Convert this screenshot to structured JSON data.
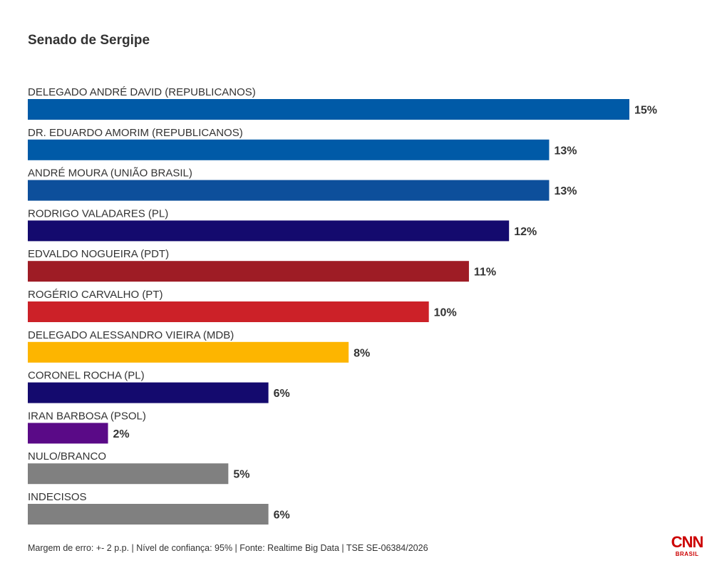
{
  "chart_data": {
    "type": "bar",
    "orientation": "horizontal",
    "title": "Senado de Sergipe",
    "categories": [
      "DELEGADO ANDRÉ DAVID (REPUBLICANOS)",
      "DR. EDUARDO AMORIM (REPUBLICANOS)",
      "ANDRÉ MOURA (UNIÃO BRASIL)",
      "RODRIGO VALADARES (PL)",
      "EDVALDO NOGUEIRA (PDT)",
      "ROGÉRIO CARVALHO (PT)",
      "DELEGADO ALESSANDRO VIEIRA (MDB)",
      "CORONEL ROCHA (PL)",
      "IRAN BARBOSA (PSOL)",
      "NULO/BRANCO",
      "INDECISOS"
    ],
    "values": [
      15,
      13,
      13,
      12,
      11,
      10,
      8,
      6,
      2,
      5,
      6
    ],
    "value_labels": [
      "15%",
      "13%",
      "13%",
      "12%",
      "11%",
      "10%",
      "8%",
      "6%",
      "2%",
      "5%",
      "6%"
    ],
    "colors": [
      "#005aa7",
      "#005aa7",
      "#0d4f9b",
      "#140a6e",
      "#9e1c25",
      "#cc2128",
      "#fdb500",
      "#140a6e",
      "#5a0a87",
      "#808080",
      "#808080"
    ],
    "xlim": [
      0,
      15
    ],
    "grid": false,
    "legend": "none"
  },
  "footnote": "Margem de erro: +- 2 p.p. | Nível de confiança: 95% | Fonte: Realtime Big Data | TSE SE-06384/2026",
  "logo": {
    "main": "CNN",
    "sub": "BRASIL",
    "color": "#cc0000"
  }
}
